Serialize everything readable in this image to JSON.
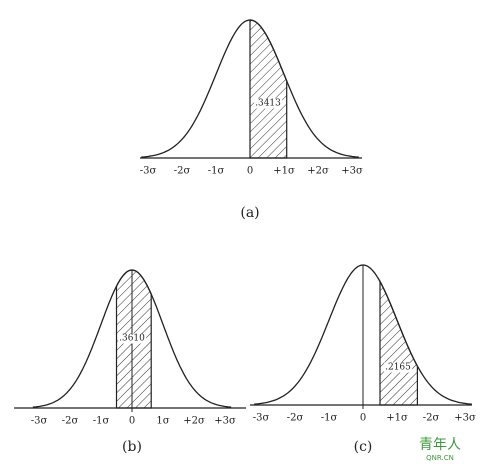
{
  "panels": [
    {
      "caption": "(a)",
      "area_label": ".3413",
      "axis_labels": [
        "-3σ",
        "-2σ",
        "-1σ",
        "0",
        "+1σ",
        "+2σ",
        "+3σ"
      ]
    },
    {
      "caption": "(b)",
      "area_label": ".3610",
      "axis_labels": [
        "-3σ",
        "-2σ",
        "-1σ",
        "0",
        "1σ",
        "+2σ",
        "+3σ"
      ]
    },
    {
      "caption": "(c)",
      "area_label": ".2165",
      "axis_labels": [
        "-3σ",
        "-2σ",
        "-1σ",
        "0",
        "+1σ",
        "-2σ",
        "+3σ"
      ]
    }
  ],
  "watermark": {
    "text": "青年人",
    "url": "QNR.CN"
  }
}
